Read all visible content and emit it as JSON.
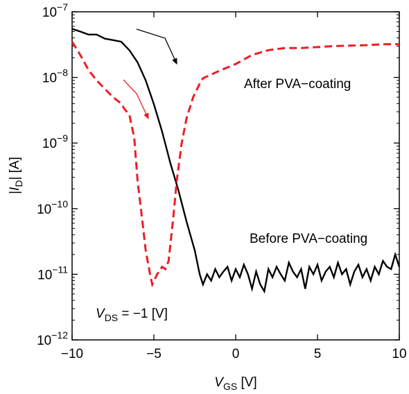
{
  "chart_data": {
    "type": "line",
    "xlabel": [
      "V",
      "GS",
      " [V]"
    ],
    "ylabel": [
      "|",
      "I",
      "D",
      "| [A]"
    ],
    "annotations": [
      [
        "V",
        "DS",
        " = −1 [V]"
      ]
    ],
    "yscale": "log",
    "xlim": [
      -10,
      10
    ],
    "xticks": [
      {
        "value": -10,
        "label": "−10"
      },
      {
        "value": -5,
        "label": "−5"
      },
      0,
      5,
      10
    ],
    "ylim": [
      1e-12,
      1e-07
    ],
    "yticks": [
      {
        "value": 1e-12,
        "label": "10−12"
      },
      {
        "value": 1e-11,
        "label": "10−11"
      },
      {
        "value": 1e-10,
        "label": "10−10"
      },
      {
        "value": 1e-09,
        "label": "10−9"
      },
      {
        "value": 1e-08,
        "label": "10−8"
      },
      {
        "value": 1e-07,
        "label": "10−7"
      }
    ],
    "series": [
      {
        "name": "Before PVA−coating",
        "color": "#000000",
        "dash": false,
        "x": [
          -10,
          -9.5,
          -9,
          -8.5,
          -8,
          -7.5,
          -7,
          -6.5,
          -6,
          -5.5,
          -5,
          -4.5,
          -4,
          -3.5,
          -3,
          -2.5,
          -2.2,
          -2,
          -1.75,
          -1.5,
          -1.25,
          -1,
          -0.75,
          -0.5,
          -0.25,
          0,
          0.25,
          0.5,
          0.75,
          1,
          1.25,
          1.5,
          1.75,
          2,
          2.25,
          2.5,
          2.75,
          3,
          3.25,
          3.5,
          3.75,
          4,
          4.25,
          4.5,
          4.75,
          5,
          5.25,
          5.5,
          5.75,
          6,
          6.25,
          6.5,
          6.75,
          7,
          7.25,
          7.5,
          7.75,
          8,
          8.25,
          8.5,
          8.75,
          9,
          9.25,
          9.5,
          9.75,
          10
        ],
        "values": [
          5.5e-08,
          5e-08,
          4.5e-08,
          4.5e-08,
          3.9e-08,
          3.7e-08,
          3.5e-08,
          2.6e-08,
          1.7e-08,
          9e-09,
          3.9e-09,
          1.5e-09,
          5e-10,
          1.9e-10,
          6.3e-11,
          2.3e-11,
          1e-11,
          7e-12,
          1e-11,
          8e-12,
          1.2e-11,
          9e-12,
          1.1e-11,
          1.3e-11,
          8e-12,
          1.2e-11,
          9e-12,
          1.4e-11,
          1e-11,
          6e-12,
          1.1e-11,
          7e-12,
          5.5e-12,
          1.2e-11,
          9e-12,
          1.3e-11,
          1e-11,
          8e-12,
          1.5e-11,
          1.1e-11,
          9e-12,
          1.2e-11,
          6e-12,
          1.3e-11,
          1e-11,
          1.4e-11,
          8e-12,
          1.1e-11,
          1.3e-11,
          9e-12,
          1.5e-11,
          1e-11,
          1.2e-11,
          7e-12,
          1.1e-11,
          1.4e-11,
          9e-12,
          1.2e-11,
          8e-12,
          1.3e-11,
          1e-11,
          1.6e-11,
          1.3e-11,
          1.2e-11,
          2e-11,
          1.3e-11
        ]
      },
      {
        "name": "After PVA−coating",
        "color": "#ee1c24",
        "dash": true,
        "x": [
          -10,
          -9.5,
          -9,
          -8.5,
          -8,
          -7.5,
          -7,
          -6.8,
          -6.5,
          -6.2,
          -6,
          -5.7,
          -5.5,
          -5.2,
          -5.1,
          -4.8,
          -4.5,
          -4.3,
          -4.1,
          -4,
          -3.8,
          -3.6,
          -3.3,
          -3,
          -2.6,
          -2.2,
          -2,
          -1,
          0,
          1,
          2,
          3,
          4,
          5,
          6,
          7,
          8,
          9,
          10
        ],
        "values": [
          3.5e-08,
          2.2e-08,
          1.3e-08,
          9e-09,
          6.7e-09,
          5e-09,
          4e-09,
          3.3e-09,
          2.7e-09,
          1.2e-09,
          2.7e-10,
          6.3e-11,
          2.3e-11,
          9e-12,
          7e-12,
          1e-11,
          1.3e-11,
          1.2e-11,
          1.6e-11,
          2.7e-11,
          8e-11,
          2.7e-10,
          1e-09,
          2.4e-09,
          5e-09,
          8e-09,
          9.7e-09,
          1.26e-08,
          1.6e-08,
          2.2e-08,
          2.6e-08,
          2.8e-08,
          2.8e-08,
          2.9e-08,
          3e-08,
          3.05e-08,
          3.1e-08,
          3.2e-08,
          3.2e-08
        ]
      }
    ]
  }
}
